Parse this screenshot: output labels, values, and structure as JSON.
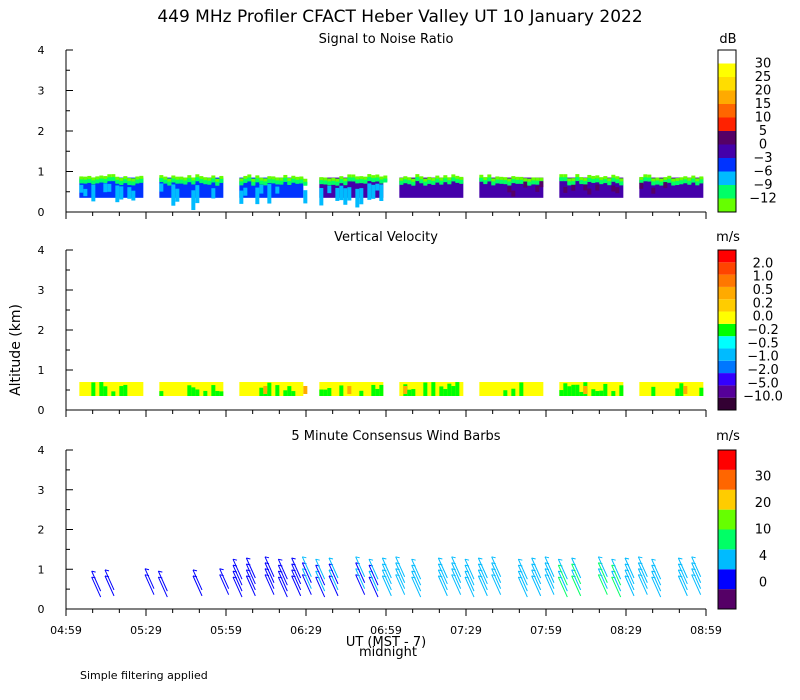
{
  "title": "449 MHz Profiler CFACT Heber Valley UT 10 January 2022",
  "ylabel": "Altitude (km)",
  "xlabel": "UT (MST - 7)",
  "midnight_label": "midnight",
  "footnote": "Simple filtering applied",
  "x_ticks": [
    "04:59",
    "05:29",
    "05:59",
    "06:29",
    "06:59",
    "07:29",
    "07:59",
    "08:29",
    "08:59"
  ],
  "x_range_minutes": [
    299,
    539
  ],
  "y_ticks": [
    "0",
    "1",
    "2",
    "3",
    "4"
  ],
  "colors": {
    "snr": [
      "#66ff00",
      "#00ff66",
      "#00bbff",
      "#0033ff",
      "#4400aa",
      "#550066",
      "#ff2200",
      "#ff6600",
      "#ffaa00",
      "#ffdd00",
      "#ffff00",
      "#ffffff"
    ],
    "vel": [
      "#330033",
      "#550099",
      "#3300ff",
      "#0077ff",
      "#00bbff",
      "#00ffff",
      "#00ff00",
      "#ffff00",
      "#ffcc00",
      "#ffaa00",
      "#ff7700",
      "#ff4400",
      "#ff0000"
    ],
    "wind": [
      "#550066",
      "#0000ff",
      "#00bbff",
      "#00ff66",
      "#66ff00",
      "#ffcc00",
      "#ff6600",
      "#ff0000"
    ]
  },
  "chart_data": [
    {
      "id": "snr",
      "type": "heatmap",
      "title": "Signal to Noise Ratio",
      "units": "dB",
      "ylim": [
        0,
        4
      ],
      "colorbar_labels": [
        "30",
        "25",
        "20",
        "15",
        "10",
        "5",
        "0",
        "−3",
        "−6",
        "−9",
        "−12"
      ],
      "x_minutes_segments": [
        [
          304,
          328
        ],
        [
          334,
          358
        ],
        [
          364,
          388
        ],
        [
          394,
          418
        ],
        [
          424,
          448
        ],
        [
          454,
          478
        ],
        [
          484,
          508
        ],
        [
          514,
          538
        ]
      ],
      "altitude_km": [
        0.35,
        1.0
      ],
      "typical_db": [
        -6,
        -3,
        0
      ]
    },
    {
      "id": "vel",
      "type": "heatmap",
      "title": "Vertical Velocity",
      "units": "m/s",
      "ylim": [
        0,
        4
      ],
      "colorbar_labels": [
        "2.0",
        "1.0",
        "0.5",
        "0.2",
        "0.0",
        "−0.2",
        "−0.5",
        "−1.0",
        "−2.0",
        "−5.0",
        "−10.0"
      ],
      "x_minutes_segments": [
        [
          304,
          328
        ],
        [
          334,
          358
        ],
        [
          364,
          388
        ],
        [
          394,
          418
        ],
        [
          424,
          448
        ],
        [
          454,
          478
        ],
        [
          484,
          508
        ],
        [
          514,
          538
        ]
      ],
      "altitude_km": [
        0.35,
        0.9
      ],
      "typical_ms": [
        -0.2,
        0.0,
        0.2
      ]
    },
    {
      "id": "wind",
      "type": "wind_barbs",
      "title": "5 Minute Consensus Wind Barbs",
      "units": "m/s",
      "ylim": [
        0,
        4
      ],
      "colorbar_labels": [
        "30",
        "20",
        "10",
        "4",
        "0"
      ],
      "times_minutes": [
        312,
        317,
        332,
        337,
        350,
        360,
        365,
        370,
        377,
        382,
        387,
        391,
        396,
        401,
        411,
        416,
        421,
        426,
        432,
        442,
        447,
        452,
        457,
        462,
        472,
        477,
        482,
        487,
        492,
        502,
        507,
        512,
        517,
        522,
        532,
        537
      ],
      "altitude_km": [
        0.3,
        0.45,
        0.6,
        0.75
      ],
      "typical_speed_ms": [
        2,
        6
      ]
    }
  ]
}
